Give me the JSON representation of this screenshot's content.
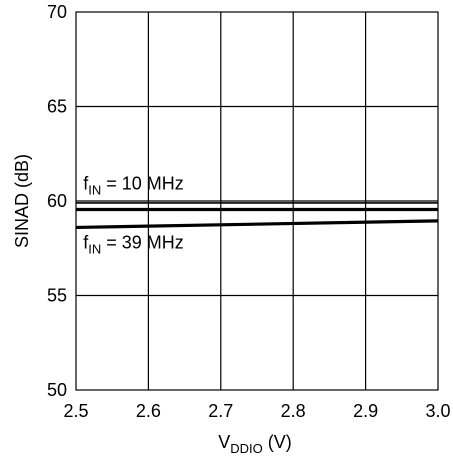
{
  "chart_data": {
    "type": "line",
    "title": "",
    "xlabel": {
      "main": "V",
      "sub": "DDIO",
      "unit": " (V)"
    },
    "ylabel": "SINAD (dB)",
    "xlim": [
      2.5,
      3.0
    ],
    "ylim": [
      50,
      70
    ],
    "x_ticks": [
      2.5,
      2.6,
      2.7,
      2.8,
      2.9,
      3.0
    ],
    "x_tick_labels": [
      "2.5",
      "2.6",
      "2.7",
      "2.8",
      "2.9",
      "3.0"
    ],
    "y_ticks": [
      50,
      55,
      60,
      65,
      70
    ],
    "y_tick_labels": [
      "50",
      "55",
      "60",
      "65",
      "70"
    ],
    "grid": true,
    "legend": "none",
    "series": [
      {
        "x": [
          2.5,
          3.0
        ],
        "y": [
          59.9,
          59.9
        ],
        "line_width": "thin",
        "color": "#000000"
      },
      {
        "x": [
          2.5,
          3.0
        ],
        "y": [
          59.55,
          59.55
        ],
        "line_width": "thick",
        "color": "#000000"
      },
      {
        "x": [
          2.5,
          3.0
        ],
        "y": [
          58.6,
          58.95
        ],
        "line_width": "thick",
        "color": "#000000"
      }
    ],
    "annotations": [
      {
        "id": "fin-10",
        "prefix": "f",
        "sub": "IN",
        "suffix": " = 10 MHz",
        "x": 2.51,
        "y": 60.6
      },
      {
        "id": "fin-39",
        "prefix": "f",
        "sub": "IN",
        "suffix": " = 39 MHz",
        "x": 2.51,
        "y": 57.5
      }
    ]
  }
}
